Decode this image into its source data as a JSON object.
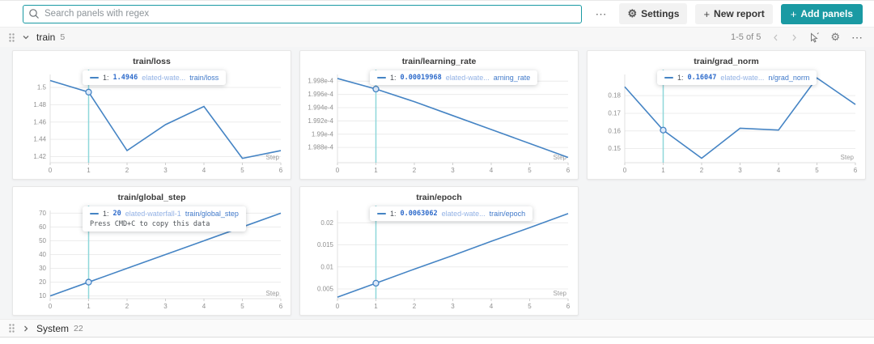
{
  "colors": {
    "accent": "#1a9aa3",
    "line": "#4584c4",
    "crosshair": "#8ed7da"
  },
  "topbar": {
    "search_placeholder": "Search panels with regex",
    "settings_label": "Settings",
    "new_report_label": "New report",
    "add_panels_label": "Add panels"
  },
  "train_section": {
    "title": "train",
    "count": "5",
    "pagination": "1-5 of 5"
  },
  "system_section": {
    "title": "System",
    "count": "22"
  },
  "run_name": "elated-waterfall-1",
  "chart_data": [
    {
      "type": "line",
      "title": "train/loss",
      "xlabel": "Step",
      "x": [
        0,
        1,
        2,
        3,
        4,
        5,
        6
      ],
      "values": [
        1.508,
        1.4946,
        1.427,
        1.457,
        1.478,
        1.418,
        1.427
      ],
      "ylim": [
        1.413,
        1.515
      ],
      "yticks": [
        1.42,
        1.44,
        1.46,
        1.48,
        1.5
      ],
      "ytick_labels": [
        "1.42",
        "1.44",
        "1.46",
        "1.48",
        "1.5"
      ],
      "crosshair_x": 1,
      "tooltip": {
        "step": "1:",
        "value": "1.4946",
        "run": "elated-wate...",
        "metric": "train/loss"
      }
    },
    {
      "type": "line",
      "title": "train/learning_rate",
      "xlabel": "Step",
      "x": [
        0,
        1,
        2,
        3,
        4,
        5,
        6
      ],
      "values": [
        0.00019984,
        0.00019968,
        0.00019949,
        0.00019928,
        0.00019907,
        0.00019886,
        0.00019865
      ],
      "ylim": [
        0.00019857,
        0.0001999
      ],
      "yticks": [
        0.0001988,
        0.000199,
        0.0001992,
        0.0001994,
        0.0001996,
        0.0001998
      ],
      "ytick_labels": [
        "1.988e-4",
        "1.99e-4",
        "1.992e-4",
        "1.994e-4",
        "1.996e-4",
        "1.998e-4"
      ],
      "crosshair_x": 1,
      "tooltip": {
        "step": "1:",
        "value": "0.00019968",
        "run": "elated-wate...",
        "metric": "arning_rate"
      }
    },
    {
      "type": "line",
      "title": "train/grad_norm",
      "xlabel": "Step",
      "x": [
        0,
        1,
        2,
        3,
        4,
        5,
        6
      ],
      "values": [
        0.185,
        0.16047,
        0.1445,
        0.1615,
        0.1605,
        0.19,
        0.175
      ],
      "ylim": [
        0.142,
        0.192
      ],
      "yticks": [
        0.15,
        0.16,
        0.17,
        0.18
      ],
      "ytick_labels": [
        "0.15",
        "0.16",
        "0.17",
        "0.18"
      ],
      "crosshair_x": 1,
      "tooltip": {
        "step": "1:",
        "value": "0.16047",
        "run": "elated-wate...",
        "metric": "n/grad_norm"
      }
    },
    {
      "type": "line",
      "title": "train/global_step",
      "xlabel": "Step",
      "x": [
        0,
        1,
        2,
        3,
        4,
        5,
        6
      ],
      "values": [
        10,
        20,
        30,
        40,
        50,
        60,
        70
      ],
      "ylim": [
        8,
        72
      ],
      "yticks": [
        10,
        20,
        30,
        40,
        50,
        60,
        70
      ],
      "ytick_labels": [
        "10",
        "20",
        "30",
        "40",
        "50",
        "60",
        "70"
      ],
      "crosshair_x": 1,
      "tooltip": {
        "step": "1:",
        "value": "20",
        "run": "elated-waterfall-1",
        "metric": "train/global_step",
        "extra": "Press CMD+C to copy this data"
      }
    },
    {
      "type": "line",
      "title": "train/epoch",
      "xlabel": "Step",
      "x": [
        0,
        1,
        2,
        3,
        4,
        5,
        6
      ],
      "values": [
        0.00315,
        0.0063062,
        0.0095,
        0.0126,
        0.0158,
        0.0189,
        0.0221
      ],
      "ylim": [
        0.0028,
        0.0228
      ],
      "yticks": [
        0.005,
        0.01,
        0.015,
        0.02
      ],
      "ytick_labels": [
        "0.005",
        "0.01",
        "0.015",
        "0.02"
      ],
      "crosshair_x": 1,
      "tooltip": {
        "step": "1:",
        "value": "0.0063062",
        "run": "elated-wate...",
        "metric": "train/epoch"
      }
    }
  ]
}
